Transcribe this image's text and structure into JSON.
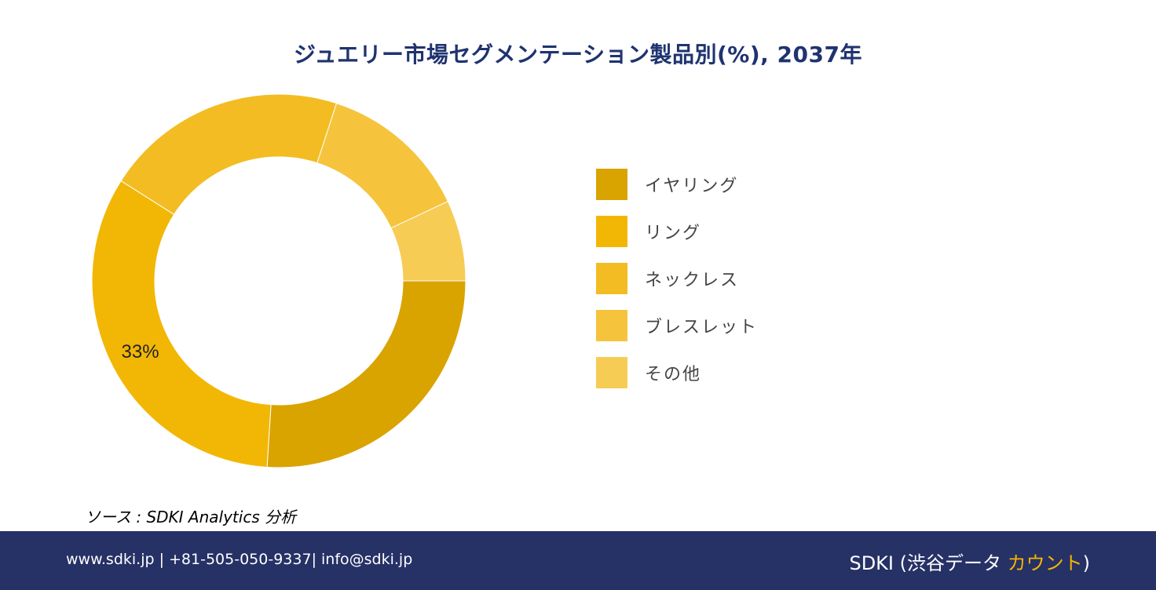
{
  "chart_data": {
    "type": "pie",
    "title": "ジュエリー市場セグメンテーション製品別(%), 2037年",
    "categories": [
      "イヤリング",
      "リング",
      "ネックレス",
      "ブレスレット",
      "その他"
    ],
    "values": [
      26,
      33,
      21,
      13,
      7
    ],
    "colors": [
      "#d9a300",
      "#f2b705",
      "#f3bc22",
      "#f5c43c",
      "#f6cc55"
    ],
    "data_labels": [
      "",
      "33%",
      "",
      "",
      ""
    ],
    "start_angle_deg": 90,
    "legend_position": "right"
  },
  "source": "ソース : SDKI Analytics 分析",
  "footer": {
    "contact": "www.sdki.jp | +81-505-050-9337| info@sdki.jp",
    "brand_main": "SDKI (渋谷データ ",
    "brand_accent": "カウント",
    "brand_end": ")"
  }
}
